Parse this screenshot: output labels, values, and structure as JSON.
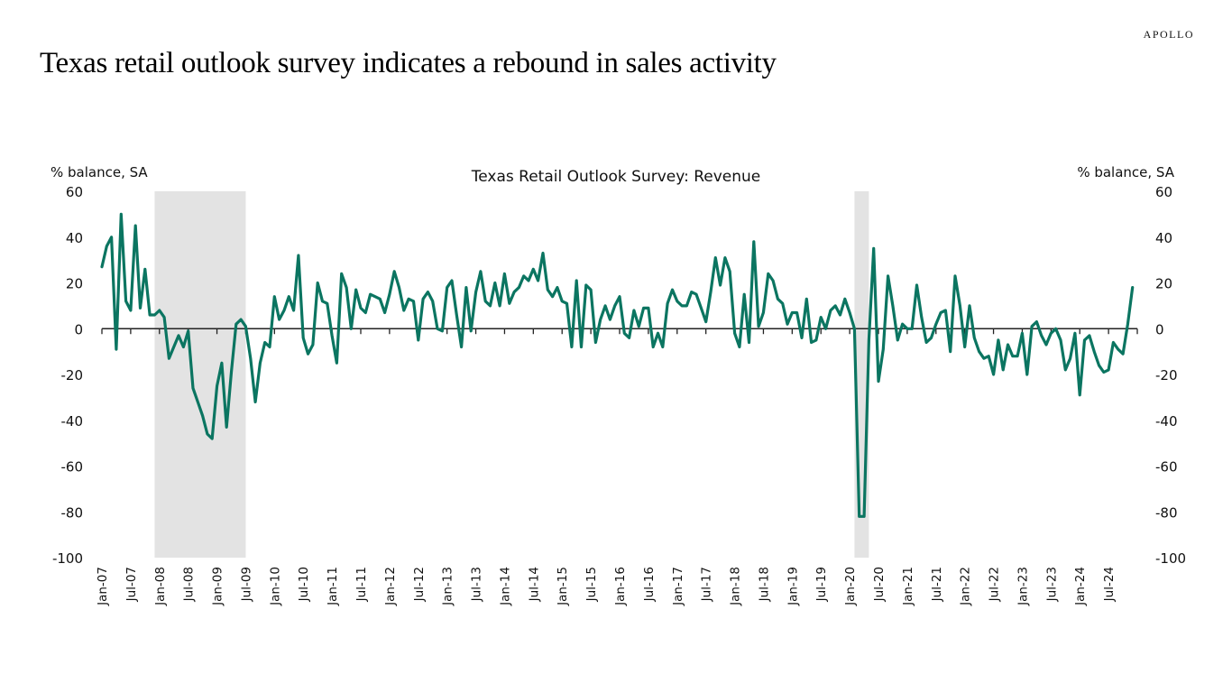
{
  "page": {
    "brand": "APOLLO",
    "headline": "Texas retail outlook survey indicates a rebound in sales activity"
  },
  "chart_data": {
    "type": "line",
    "title": "Texas Retail Outlook Survey: Revenue",
    "ylabel_left": "% balance, SA",
    "ylabel_right": "% balance, SA",
    "ylim": [
      -100,
      60
    ],
    "yticks": [
      60,
      40,
      20,
      0,
      -20,
      -40,
      -60,
      -80,
      -100
    ],
    "grid": false,
    "legend": "none",
    "line_color": "#0b7561",
    "recession_color": "#e3e3e3",
    "start": "Jan-07",
    "frequency": "monthly",
    "xticks": [
      "Jan-07",
      "Jul-07",
      "Jan-08",
      "Jul-08",
      "Jan-09",
      "Jul-09",
      "Jan-10",
      "Jul-10",
      "Jan-11",
      "Jul-11",
      "Jan-12",
      "Jul-12",
      "Jan-13",
      "Jul-13",
      "Jan-14",
      "Jul-14",
      "Jan-15",
      "Jul-15",
      "Jan-16",
      "Jul-16",
      "Jan-17",
      "Jul-17",
      "Jan-18",
      "Jul-18",
      "Jan-19",
      "Jul-19",
      "Jan-20",
      "Jul-20",
      "Jan-21",
      "Jul-21",
      "Jan-22",
      "Jul-22",
      "Jan-23",
      "Jul-23",
      "Jan-24",
      "Jul-24"
    ],
    "recessions": [
      {
        "start": "Dec-07",
        "end": "Jun-09"
      },
      {
        "start": "Feb-20",
        "end": "Apr-20"
      }
    ],
    "series": [
      {
        "name": "Revenue",
        "values": [
          27,
          36,
          40,
          -9,
          50,
          12,
          8,
          45,
          9,
          26,
          6,
          6,
          8,
          5,
          -13,
          -8,
          -3,
          -8,
          -1,
          -26,
          -32,
          -38,
          -46,
          -48,
          -25,
          -15,
          -43,
          -19,
          2,
          4,
          1,
          -13,
          -32,
          -15,
          -6,
          -8,
          14,
          4,
          8,
          14,
          8,
          32,
          -4,
          -11,
          -7,
          20,
          12,
          11,
          -3,
          -15,
          24,
          18,
          0,
          17,
          9,
          7,
          15,
          14,
          13,
          7,
          15,
          25,
          18,
          8,
          13,
          12,
          -5,
          13,
          16,
          12,
          0,
          -1,
          18,
          21,
          6,
          -8,
          18,
          -1,
          16,
          25,
          12,
          10,
          20,
          10,
          24,
          11,
          16,
          18,
          23,
          21,
          26,
          21,
          33,
          17,
          14,
          18,
          12,
          11,
          -8,
          21,
          -8,
          19,
          17,
          -6,
          4,
          10,
          4,
          10,
          14,
          -2,
          -4,
          8,
          1,
          9,
          9,
          -8,
          -2,
          -8,
          11,
          17,
          12,
          10,
          10,
          16,
          15,
          9,
          3,
          16,
          31,
          19,
          31,
          25,
          -2,
          -8,
          15,
          -6,
          38,
          1,
          7,
          24,
          21,
          13,
          11,
          2,
          7,
          7,
          -4,
          13,
          -6,
          -5,
          5,
          0,
          8,
          10,
          6,
          13,
          7,
          0,
          -82,
          -82,
          -5,
          35,
          -23,
          -9,
          23,
          10,
          -5,
          2,
          0,
          0,
          19,
          5,
          -6,
          -4,
          2,
          7,
          8,
          -10,
          23,
          10,
          -8,
          10,
          -4,
          -10,
          -13,
          -12,
          -20,
          -5,
          -18,
          -7,
          -12,
          -12,
          -2,
          -20,
          1,
          3,
          -3,
          -7,
          -2,
          0,
          -5,
          -18,
          -13,
          -2,
          -29,
          -5,
          -3,
          -10,
          -16,
          -19,
          -18,
          -6,
          -9,
          -11,
          2,
          18
        ]
      }
    ]
  }
}
